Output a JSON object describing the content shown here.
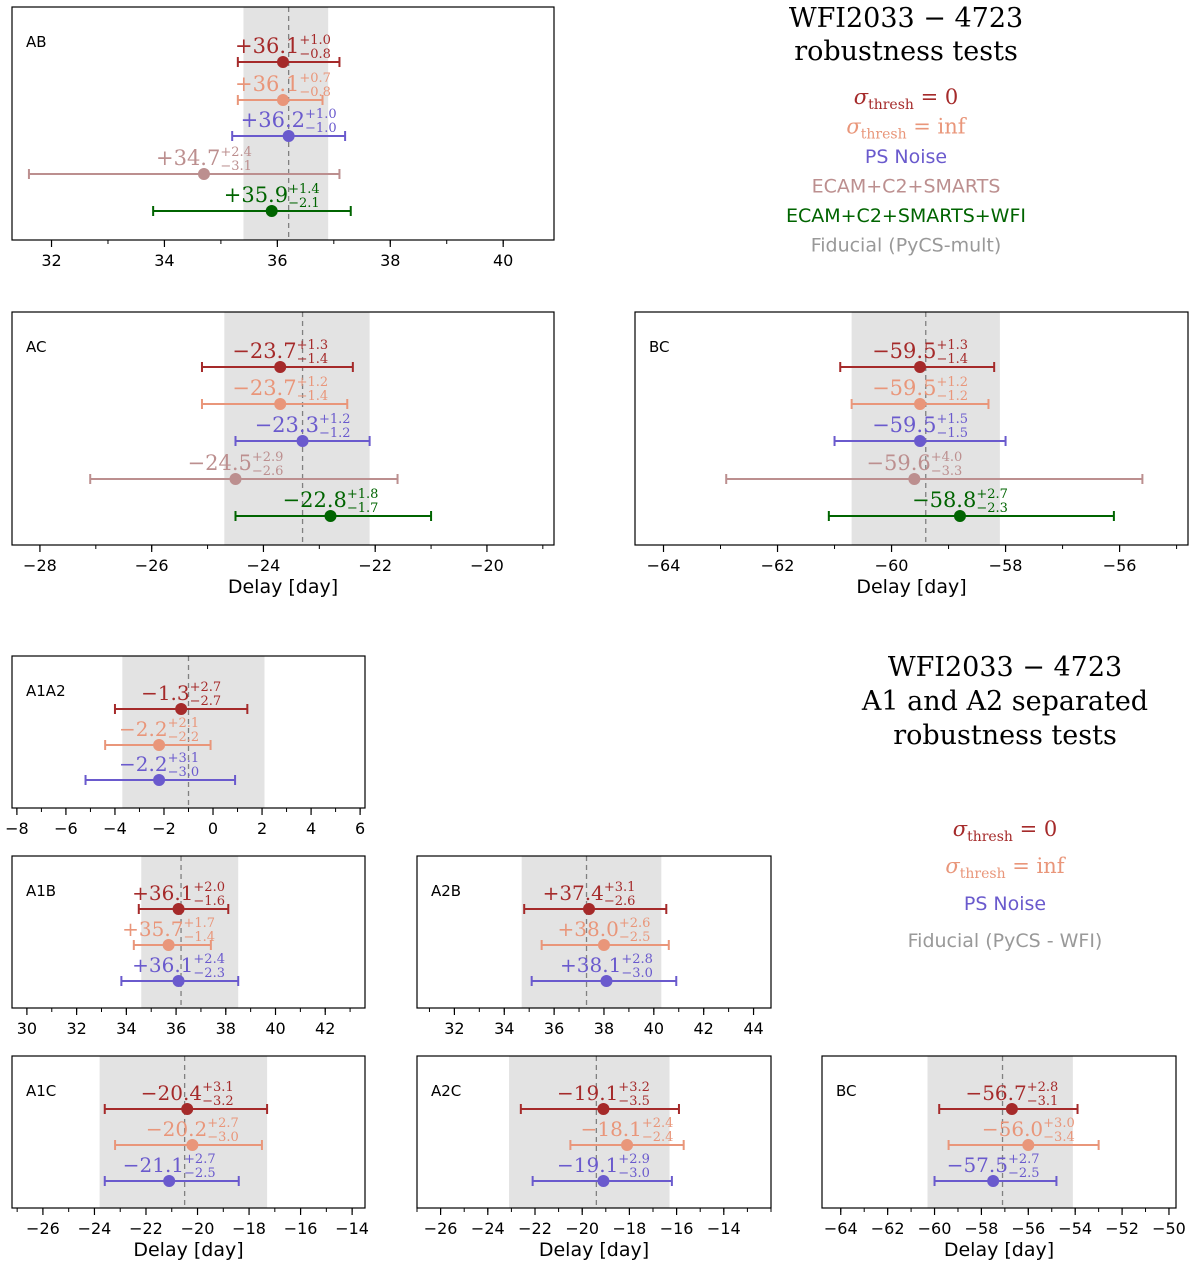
{
  "colors": {
    "thresh0": "#a52a2a",
    "threshinf": "#e9967a",
    "psnoise": "#6a5acd",
    "ecam": "#bc8f8f",
    "ecamwfi": "#006400",
    "fiducial": "#999999",
    "band": "#e3e3e3",
    "axis": "#000000"
  },
  "legend_top": {
    "title_lines": [
      "WFI2033 − 4723",
      "robustness tests"
    ],
    "items": [
      {
        "sym": "σ",
        "sub": "thresh",
        "rest": " = 0",
        "color": "thresh0",
        "math": true
      },
      {
        "sym": "σ",
        "sub": "thresh",
        "rest": " = inf",
        "color": "threshinf",
        "math": true
      },
      {
        "text": "PS Noise",
        "color": "psnoise"
      },
      {
        "text": "ECAM+C2+SMARTS",
        "color": "ecam"
      },
      {
        "text": "ECAM+C2+SMARTS+WFI",
        "color": "ecamwfi"
      },
      {
        "text": "Fiducial (PyCS-mult)",
        "color": "fiducial"
      }
    ]
  },
  "legend_bottom": {
    "title_lines": [
      "WFI2033 − 4723",
      "A1 and A2 separated",
      "robustness tests"
    ],
    "items": [
      {
        "sym": "σ",
        "sub": "thresh",
        "rest": " = 0",
        "color": "thresh0",
        "math": true
      },
      {
        "sym": "σ",
        "sub": "thresh",
        "rest": " = inf",
        "color": "threshinf",
        "math": true
      },
      {
        "text": "PS Noise",
        "color": "psnoise"
      },
      {
        "text": "Fiducial (PyCS - WFI)",
        "color": "fiducial"
      }
    ]
  },
  "chart_data": [
    {
      "type": "errorbar",
      "label": "AB",
      "xlim": [
        31.3,
        40.9
      ],
      "xticks": [
        32,
        34,
        36,
        38,
        40
      ],
      "xlabel": "",
      "fiducial": {
        "value": 36.2,
        "band": [
          35.4,
          36.9
        ]
      },
      "series": [
        {
          "name": "thresh0",
          "value": 36.1,
          "plus": 1.0,
          "minus": 0.8,
          "sign": "+",
          "vs": "+36.1",
          "ps": "+1.0",
          "ms": "−0.8"
        },
        {
          "name": "threshinf",
          "value": 36.1,
          "plus": 0.7,
          "minus": 0.8,
          "sign": "+",
          "vs": "+36.1",
          "ps": "+0.7",
          "ms": "−0.8"
        },
        {
          "name": "psnoise",
          "value": 36.2,
          "plus": 1.0,
          "minus": 1.0,
          "sign": "+",
          "vs": "+36.2",
          "ps": "+1.0",
          "ms": "−1.0"
        },
        {
          "name": "ecam",
          "value": 34.7,
          "plus": 2.4,
          "minus": 3.1,
          "sign": "+",
          "vs": "+34.7",
          "ps": "+2.4",
          "ms": "−3.1"
        },
        {
          "name": "ecamwfi",
          "value": 35.9,
          "plus": 1.4,
          "minus": 2.1,
          "sign": "+",
          "vs": "+35.9",
          "ps": "+1.4",
          "ms": "−2.1"
        }
      ]
    },
    {
      "type": "errorbar",
      "label": "AC",
      "xlim": [
        -28.5,
        -18.8
      ],
      "xticks": [
        -28,
        -26,
        -24,
        -22,
        -20
      ],
      "xlabel": "Delay [day]",
      "fiducial": {
        "value": -23.3,
        "band": [
          -24.7,
          -22.1
        ]
      },
      "series": [
        {
          "name": "thresh0",
          "value": -23.7,
          "plus": 1.3,
          "minus": 1.4,
          "vs": "−23.7",
          "ps": "+1.3",
          "ms": "−1.4"
        },
        {
          "name": "threshinf",
          "value": -23.7,
          "plus": 1.2,
          "minus": 1.4,
          "vs": "−23.7",
          "ps": "+1.2",
          "ms": "−1.4"
        },
        {
          "name": "psnoise",
          "value": -23.3,
          "plus": 1.2,
          "minus": 1.2,
          "vs": "−23.3",
          "ps": "+1.2",
          "ms": "−1.2"
        },
        {
          "name": "ecam",
          "value": -24.5,
          "plus": 2.9,
          "minus": 2.6,
          "vs": "−24.5",
          "ps": "+2.9",
          "ms": "−2.6"
        },
        {
          "name": "ecamwfi",
          "value": -22.8,
          "plus": 1.8,
          "minus": 1.7,
          "vs": "−22.8",
          "ps": "+1.8",
          "ms": "−1.7"
        }
      ]
    },
    {
      "type": "errorbar",
      "label": "BC",
      "xlim": [
        -64.5,
        -54.8
      ],
      "xticks": [
        -64,
        -62,
        -60,
        -58,
        -56
      ],
      "xlabel": "Delay [day]",
      "fiducial": {
        "value": -59.4,
        "band": [
          -60.7,
          -58.1
        ]
      },
      "series": [
        {
          "name": "thresh0",
          "value": -59.5,
          "plus": 1.3,
          "minus": 1.4,
          "vs": "−59.5",
          "ps": "+1.3",
          "ms": "−1.4"
        },
        {
          "name": "threshinf",
          "value": -59.5,
          "plus": 1.2,
          "minus": 1.2,
          "vs": "−59.5",
          "ps": "+1.2",
          "ms": "−1.2"
        },
        {
          "name": "psnoise",
          "value": -59.5,
          "plus": 1.5,
          "minus": 1.5,
          "vs": "−59.5",
          "ps": "+1.5",
          "ms": "−1.5"
        },
        {
          "name": "ecam",
          "value": -59.6,
          "plus": 4.0,
          "minus": 3.3,
          "vs": "−59.6",
          "ps": "+4.0",
          "ms": "−3.3"
        },
        {
          "name": "ecamwfi",
          "value": -58.8,
          "plus": 2.7,
          "minus": 2.3,
          "vs": "−58.8",
          "ps": "+2.7",
          "ms": "−2.3"
        }
      ]
    },
    {
      "type": "errorbar",
      "label": "A1A2",
      "xlim": [
        -8.2,
        6.2
      ],
      "xticks": [
        -8,
        -6,
        -4,
        -2,
        0,
        2,
        4,
        6
      ],
      "xlabel": "",
      "fiducial": {
        "value": -1.0,
        "band": [
          -3.7,
          2.1
        ]
      },
      "series": [
        {
          "name": "thresh0",
          "value": -1.3,
          "plus": 2.7,
          "minus": 2.7,
          "vs": "−1.3",
          "ps": "+2.7",
          "ms": "−2.7"
        },
        {
          "name": "threshinf",
          "value": -2.2,
          "plus": 2.1,
          "minus": 2.2,
          "vs": "−2.2",
          "ps": "+2.1",
          "ms": "−2.2"
        },
        {
          "name": "psnoise",
          "value": -2.2,
          "plus": 3.1,
          "minus": 3.0,
          "vs": "−2.2",
          "ps": "+3.1",
          "ms": "−3.0"
        }
      ]
    },
    {
      "type": "errorbar",
      "label": "A1B",
      "xlim": [
        29.4,
        43.6
      ],
      "xticks": [
        30,
        32,
        34,
        36,
        38,
        40,
        42
      ],
      "xlabel": "",
      "fiducial": {
        "value": 36.2,
        "band": [
          34.6,
          38.5
        ]
      },
      "series": [
        {
          "name": "thresh0",
          "value": 36.1,
          "plus": 2.0,
          "minus": 1.6,
          "vs": "+36.1",
          "ps": "+2.0",
          "ms": "−1.6"
        },
        {
          "name": "threshinf",
          "value": 35.7,
          "plus": 1.7,
          "minus": 1.4,
          "vs": "+35.7",
          "ps": "+1.7",
          "ms": "−1.4"
        },
        {
          "name": "psnoise",
          "value": 36.1,
          "plus": 2.4,
          "minus": 2.3,
          "vs": "+36.1",
          "ps": "+2.4",
          "ms": "−2.3"
        }
      ]
    },
    {
      "type": "errorbar",
      "label": "A2B",
      "xlim": [
        30.5,
        44.7
      ],
      "xticks": [
        32,
        34,
        36,
        38,
        40,
        42,
        44
      ],
      "xlabel": "",
      "fiducial": {
        "value": 37.3,
        "band": [
          34.7,
          40.3
        ]
      },
      "series": [
        {
          "name": "thresh0",
          "value": 37.4,
          "plus": 3.1,
          "minus": 2.6,
          "vs": "+37.4",
          "ps": "+3.1",
          "ms": "−2.6"
        },
        {
          "name": "threshinf",
          "value": 38.0,
          "plus": 2.6,
          "minus": 2.5,
          "vs": "+38.0",
          "ps": "+2.6",
          "ms": "−2.5"
        },
        {
          "name": "psnoise",
          "value": 38.1,
          "plus": 2.8,
          "minus": 3.0,
          "vs": "+38.1",
          "ps": "+2.8",
          "ms": "−3.0"
        }
      ]
    },
    {
      "type": "errorbar",
      "label": "A1C",
      "xlim": [
        -27.2,
        -13.5
      ],
      "xticks": [
        -26,
        -24,
        -22,
        -20,
        -18,
        -16,
        -14
      ],
      "xlabel": "Delay [day]",
      "fiducial": {
        "value": -20.5,
        "band": [
          -23.8,
          -17.3
        ]
      },
      "series": [
        {
          "name": "thresh0",
          "value": -20.4,
          "plus": 3.1,
          "minus": 3.2,
          "vs": "−20.4",
          "ps": "+3.1",
          "ms": "−3.2"
        },
        {
          "name": "threshinf",
          "value": -20.2,
          "plus": 2.7,
          "minus": 3.0,
          "vs": "−20.2",
          "ps": "+2.7",
          "ms": "−3.0"
        },
        {
          "name": "psnoise",
          "value": -21.1,
          "plus": 2.7,
          "minus": 2.5,
          "vs": "−21.1",
          "ps": "+2.7",
          "ms": "−2.5"
        }
      ]
    },
    {
      "type": "errorbar",
      "label": "A2C",
      "xlim": [
        -27.0,
        -12.0
      ],
      "xticks": [
        -26,
        -24,
        -22,
        -20,
        -18,
        -16,
        -14
      ],
      "xlabel": "Delay [day]",
      "fiducial": {
        "value": -19.4,
        "band": [
          -23.1,
          -16.3
        ]
      },
      "series": [
        {
          "name": "thresh0",
          "value": -19.1,
          "plus": 3.2,
          "minus": 3.5,
          "vs": "−19.1",
          "ps": "+3.2",
          "ms": "−3.5"
        },
        {
          "name": "threshinf",
          "value": -18.1,
          "plus": 2.4,
          "minus": 2.4,
          "vs": "−18.1",
          "ps": "+2.4",
          "ms": "−2.4"
        },
        {
          "name": "psnoise",
          "value": -19.1,
          "plus": 2.9,
          "minus": 3.0,
          "vs": "−19.1",
          "ps": "+2.9",
          "ms": "−3.0"
        }
      ]
    },
    {
      "type": "errorbar",
      "label": "BC",
      "xlim": [
        -64.8,
        -49.7
      ],
      "xticks": [
        -64,
        -62,
        -60,
        -58,
        -56,
        -54,
        -52,
        -50
      ],
      "xlabel": "Delay [day]",
      "fiducial": {
        "value": -57.1,
        "band": [
          -60.3,
          -54.1
        ]
      },
      "series": [
        {
          "name": "thresh0",
          "value": -56.7,
          "plus": 2.8,
          "minus": 3.1,
          "vs": "−56.7",
          "ps": "+2.8",
          "ms": "−3.1"
        },
        {
          "name": "threshinf",
          "value": -56.0,
          "plus": 3.0,
          "minus": 3.4,
          "vs": "−56.0",
          "ps": "+3.0",
          "ms": "−3.4"
        },
        {
          "name": "psnoise",
          "value": -57.5,
          "plus": 2.7,
          "minus": 2.5,
          "vs": "−57.5",
          "ps": "+2.7",
          "ms": "−2.5"
        }
      ]
    }
  ]
}
